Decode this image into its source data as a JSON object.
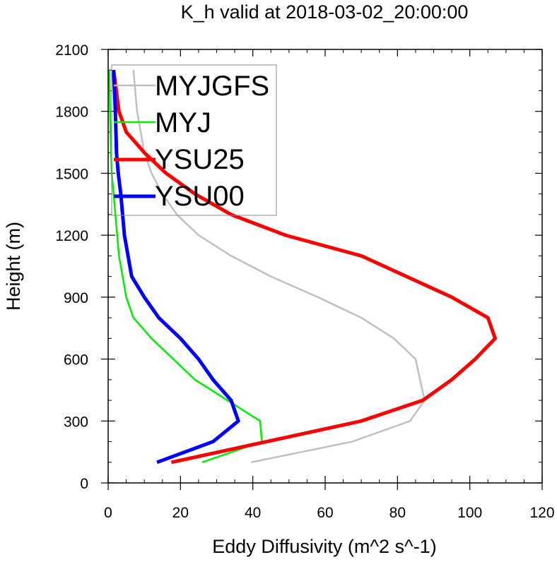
{
  "chart_data": {
    "type": "line",
    "title": "K_h valid at 2018-03-02_20:00:00",
    "xlabel": "Eddy Diffusivity (m^2 s^-1)",
    "ylabel": "Height (m)",
    "xlim": [
      0,
      120
    ],
    "ylim": [
      0,
      2100
    ],
    "xticks": [
      0,
      20,
      40,
      60,
      80,
      100,
      120
    ],
    "yticks": [
      0,
      300,
      600,
      900,
      1200,
      1500,
      1800,
      2100
    ],
    "grid": false,
    "legend": "top-left",
    "series": [
      {
        "name": "MYJGFS",
        "color": "#c0c0c0",
        "x": [
          39.5,
          67.5,
          83.5,
          87.5,
          85,
          79,
          70,
          58,
          45,
          34,
          25,
          19,
          15,
          12,
          10,
          9,
          8,
          7
        ],
        "y": [
          100,
          200,
          300,
          400,
          600,
          700,
          800,
          900,
          1000,
          1100,
          1200,
          1300,
          1400,
          1500,
          1600,
          1700,
          1800,
          2000
        ]
      },
      {
        "name": "MYJ",
        "color": "#00ee00",
        "x": [
          26,
          42.5,
          42,
          24,
          12,
          7,
          5,
          4,
          3,
          2.5,
          2,
          1.5,
          1,
          0.8,
          0.5,
          0.3
        ],
        "y": [
          100,
          200,
          300,
          500,
          700,
          800,
          900,
          1000,
          1100,
          1200,
          1300,
          1400,
          1500,
          1600,
          1800,
          2000
        ]
      },
      {
        "name": "YSU25",
        "color": "#ff0000",
        "x": [
          17.5,
          70,
          87,
          95,
          101.5,
          107,
          105,
          95,
          70,
          49,
          34,
          24,
          16,
          10,
          5,
          3,
          1.5
        ],
        "y": [
          100,
          300,
          400,
          500,
          600,
          700,
          800,
          900,
          1100,
          1200,
          1300,
          1400,
          1500,
          1600,
          1700,
          1800,
          2000
        ]
      },
      {
        "name": "YSU00",
        "color": "#0000ff",
        "x": [
          13.5,
          29,
          36,
          34,
          29,
          25,
          20,
          14,
          10,
          6.5,
          4.5,
          3.5,
          2.8,
          2.3,
          2,
          1.5
        ],
        "y": [
          100,
          200,
          300,
          400,
          500,
          600,
          700,
          800,
          900,
          1000,
          1200,
          1400,
          1500,
          1600,
          1800,
          2000
        ]
      }
    ]
  }
}
